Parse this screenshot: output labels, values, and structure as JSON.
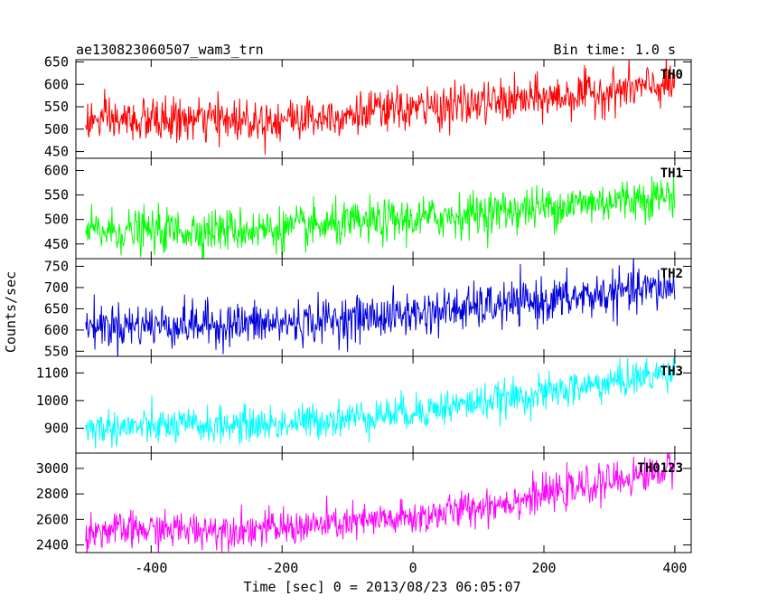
{
  "header": {
    "left_title": "ae130823060507_wam3_trn",
    "right_title": "Bin time: 1.0 s"
  },
  "chart_data": {
    "type": "line",
    "title": "ae130823060507_wam3_trn",
    "subtitle": "Bin time: 1.0 s",
    "xlabel": "Time [sec] 0 = 2013/08/23 06:05:07",
    "ylabel": "Counts/sec",
    "xlim": [
      -515,
      425
    ],
    "x_start": -500,
    "x_end": 400,
    "bin_time_s": 1.0,
    "x_ticks": [
      -400,
      -200,
      0,
      200,
      400
    ],
    "panels": [
      {
        "name": "TH0",
        "color": "#ff0000",
        "ylim": [
          435,
          655
        ],
        "y_ticks": [
          450,
          500,
          550,
          600,
          650
        ],
        "trend": [
          {
            "x": -500,
            "y": 518
          },
          {
            "x": -200,
            "y": 522
          },
          {
            "x": 0,
            "y": 545
          },
          {
            "x": 200,
            "y": 568
          },
          {
            "x": 400,
            "y": 600
          }
        ],
        "noise_sd": 24
      },
      {
        "name": "TH1",
        "color": "#00ff00",
        "ylim": [
          420,
          625
        ],
        "y_ticks": [
          450,
          500,
          550,
          600
        ],
        "trend": [
          {
            "x": -500,
            "y": 475
          },
          {
            "x": -200,
            "y": 480
          },
          {
            "x": 0,
            "y": 500
          },
          {
            "x": 200,
            "y": 525
          },
          {
            "x": 400,
            "y": 550
          }
        ],
        "noise_sd": 22
      },
      {
        "name": "TH2",
        "color": "#0000dd",
        "ylim": [
          538,
          768
        ],
        "y_ticks": [
          550,
          600,
          650,
          700,
          750
        ],
        "trend": [
          {
            "x": -500,
            "y": 610
          },
          {
            "x": -200,
            "y": 615
          },
          {
            "x": 0,
            "y": 638
          },
          {
            "x": 200,
            "y": 668
          },
          {
            "x": 400,
            "y": 702
          }
        ],
        "noise_sd": 26
      },
      {
        "name": "TH3",
        "color": "#00ffff",
        "ylim": [
          810,
          1160
        ],
        "y_ticks": [
          900,
          1000,
          1100
        ],
        "trend": [
          {
            "x": -500,
            "y": 900
          },
          {
            "x": -200,
            "y": 915
          },
          {
            "x": 0,
            "y": 960
          },
          {
            "x": 200,
            "y": 1025
          },
          {
            "x": 400,
            "y": 1105
          }
        ],
        "noise_sd": 32
      },
      {
        "name": "TH0123",
        "color": "#ff00ff",
        "ylim": [
          2340,
          3120
        ],
        "y_ticks": [
          2400,
          2600,
          2800,
          3000
        ],
        "trend": [
          {
            "x": -500,
            "y": 2510
          },
          {
            "x": -200,
            "y": 2530
          },
          {
            "x": 0,
            "y": 2610
          },
          {
            "x": 200,
            "y": 2790
          },
          {
            "x": 400,
            "y": 3000
          }
        ],
        "noise_sd": 70
      }
    ]
  }
}
